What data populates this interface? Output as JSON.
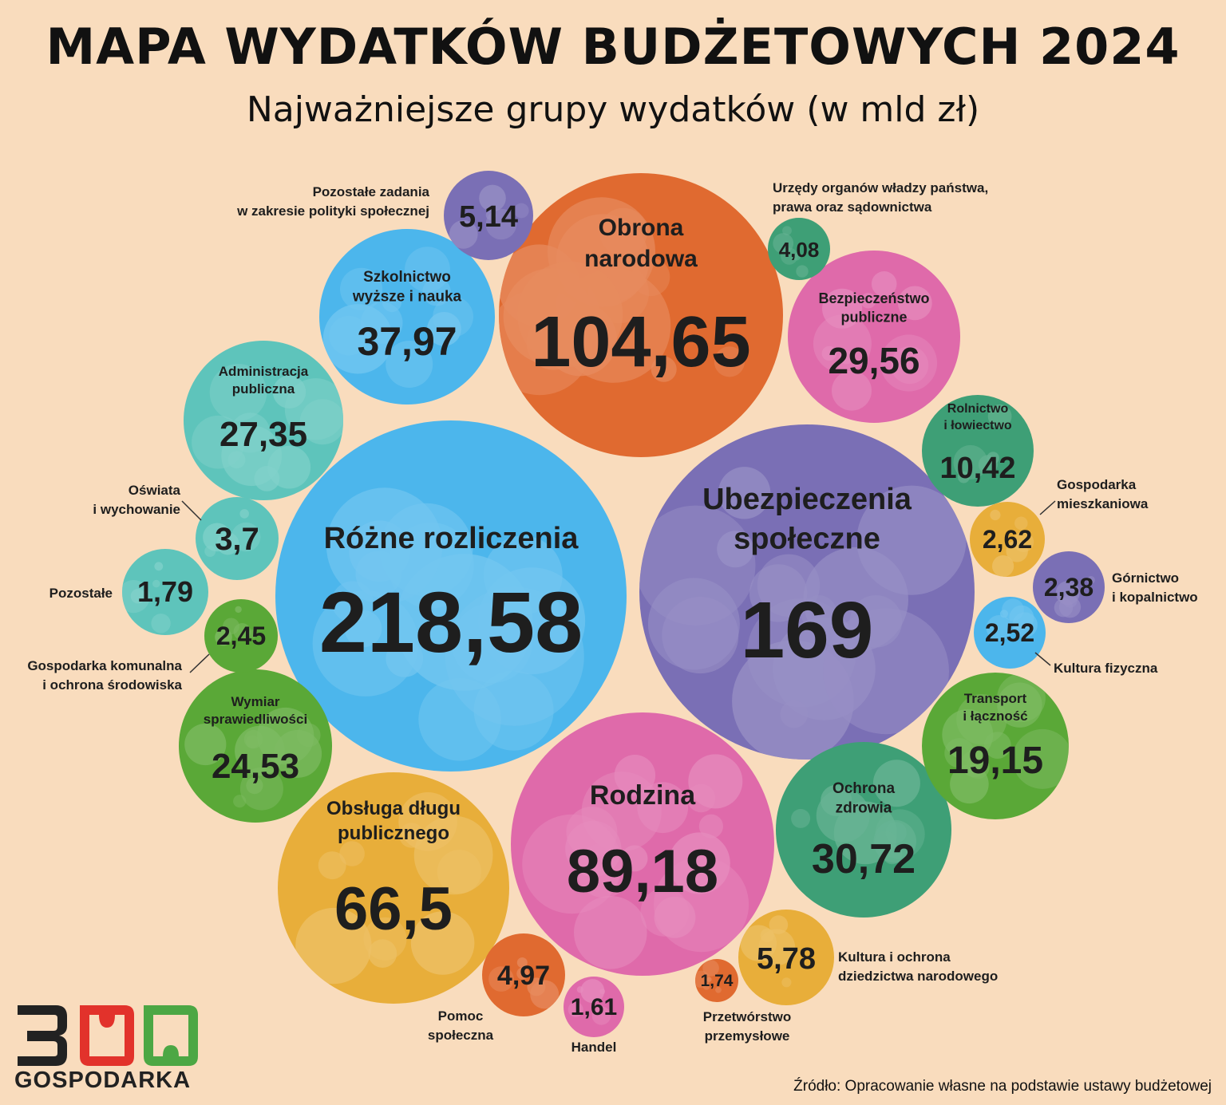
{
  "header": {
    "title": "MAPA WYDATKÓW BUDŻETOWYCH 2024",
    "subtitle": "Najważniejsze grupy wydatków (w mld zł)"
  },
  "chart_data": {
    "type": "bubble",
    "title": "MAPA WYDATKÓW BUDŻETOWYCH 2024",
    "subtitle": "Najważniejsze grupy wydatków (w mld zł)",
    "unit": "mld zł",
    "items": [
      {
        "name": "Różne rozliczenia",
        "value": 218.58,
        "display": "218,58",
        "color": "#4cb6ec"
      },
      {
        "name": "Ubezpieczenia społeczne",
        "value": 169,
        "display": "169",
        "color": "#7a6fb5"
      },
      {
        "name": "Obrona narodowa",
        "value": 104.65,
        "display": "104,65",
        "color": "#e06a30"
      },
      {
        "name": "Rodzina",
        "value": 89.18,
        "display": "89,18",
        "color": "#df6aaa"
      },
      {
        "name": "Obsługa długu publicznego",
        "value": 66.5,
        "display": "66,5",
        "color": "#e8ae3a"
      },
      {
        "name": "Szkolnictwo wyższe i nauka",
        "value": 37.97,
        "display": "37,97",
        "color": "#4cb6ec"
      },
      {
        "name": "Ochrona zdrowia",
        "value": 30.72,
        "display": "30,72",
        "color": "#3e9f76"
      },
      {
        "name": "Bezpieczeństwo publiczne",
        "value": 29.56,
        "display": "29,56",
        "color": "#df6aaa"
      },
      {
        "name": "Administracja publiczna",
        "value": 27.35,
        "display": "27,35",
        "color": "#5ec4bb"
      },
      {
        "name": "Wymiar sprawiedliwości",
        "value": 24.53,
        "display": "24,53",
        "color": "#5aa837"
      },
      {
        "name": "Transport i łączność",
        "value": 19.15,
        "display": "19,15",
        "color": "#5aa837"
      },
      {
        "name": "Rolnictwo i łowiectwo",
        "value": 10.42,
        "display": "10,42",
        "color": "#3e9f76"
      },
      {
        "name": "Kultura i ochrona dziedzictwa narodowego",
        "value": 5.78,
        "display": "5,78",
        "color": "#e8ae3a"
      },
      {
        "name": "Pozostałe zadania w zakresie polityki społecznej",
        "value": 5.14,
        "display": "5,14",
        "color": "#7a6fb5"
      },
      {
        "name": "Pomoc społeczna",
        "value": 4.97,
        "display": "4,97",
        "color": "#e06a30"
      },
      {
        "name": "Urzędy organów władzy państwa, prawa oraz sądownictwa",
        "value": 4.08,
        "display": "4,08",
        "color": "#3e9f76"
      },
      {
        "name": "Oświata i wychowanie",
        "value": 3.7,
        "display": "3,7",
        "color": "#5ec4bb"
      },
      {
        "name": "Gospodarka mieszkaniowa",
        "value": 2.62,
        "display": "2,62",
        "color": "#e8ae3a"
      },
      {
        "name": "Kultura fizyczna",
        "value": 2.52,
        "display": "2,52",
        "color": "#4cb6ec"
      },
      {
        "name": "Gospodarka komunalna i ochrona środowiska",
        "value": 2.45,
        "display": "2,45",
        "color": "#5aa837"
      },
      {
        "name": "Górnictwo i kopalnictwo",
        "value": 2.38,
        "display": "2,38",
        "color": "#7a6fb5"
      },
      {
        "name": "Pozostałe",
        "value": 1.79,
        "display": "1,79",
        "color": "#5ec4bb"
      },
      {
        "name": "Przetwórstwo przemysłowe",
        "value": 1.74,
        "display": "1,74",
        "color": "#e06a30"
      },
      {
        "name": "Handel",
        "value": 1.61,
        "display": "1,61",
        "color": "#df6aaa"
      }
    ]
  },
  "source": "Źródło: Opracowanie własne na podstawie ustawy budżetowej",
  "logo": {
    "number": "300",
    "text": "GOSPODARKA",
    "color_dark": "#222222",
    "color_red": "#e2322b",
    "color_green": "#4ca744"
  }
}
